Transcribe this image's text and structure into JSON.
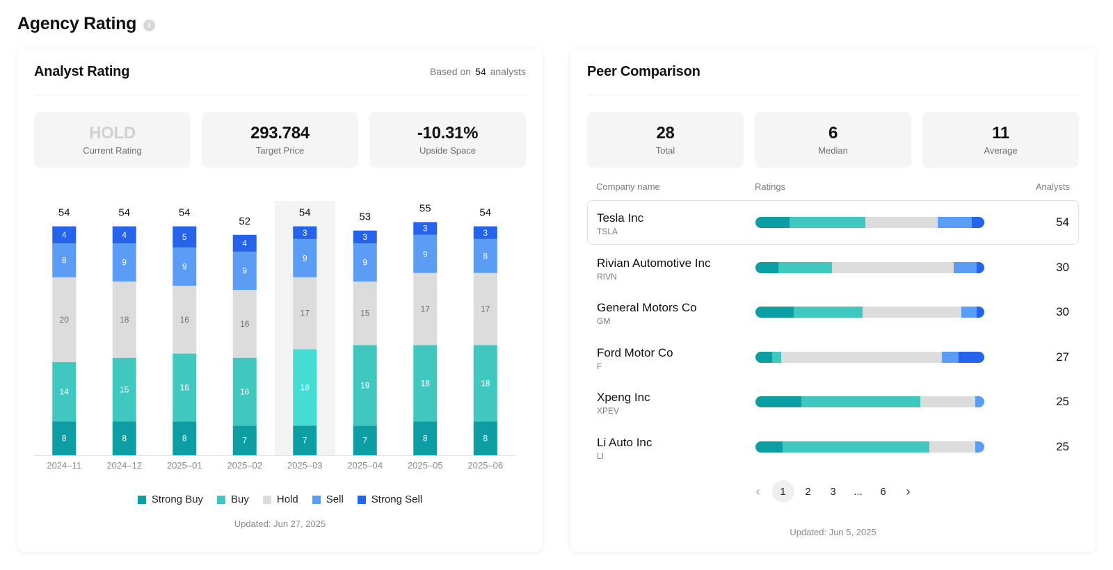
{
  "page": {
    "title": "Agency Rating",
    "info_glyph": "i"
  },
  "analyst": {
    "title": "Analyst Rating",
    "based_on_prefix": "Based on",
    "based_on_count": "54",
    "based_on_suffix": "analysts",
    "stats": [
      {
        "value": "HOLD",
        "label": "Current Rating"
      },
      {
        "value": "293.784",
        "label": "Target Price"
      },
      {
        "value": "-10.31%",
        "label": "Upside Space"
      }
    ],
    "updated": "Updated: Jun 27, 2025"
  },
  "colors": {
    "strong_buy": "#0d9ea3",
    "buy": "#40c8c0",
    "buy_highlight": "#45dcd3",
    "hold": "#dcdcdc",
    "sell": "#5b9cf5",
    "strong_sell": "#2563eb",
    "highlight_bg": "#f3f3f3"
  },
  "legend": [
    "Strong Buy",
    "Buy",
    "Hold",
    "Sell",
    "Strong Sell"
  ],
  "chart_data": {
    "type": "bar",
    "stacked": true,
    "categories": [
      "2024–11",
      "2024–12",
      "2025–01",
      "2025–02",
      "2025–03",
      "2025–04",
      "2025–05",
      "2025–06"
    ],
    "series": [
      {
        "name": "Strong Buy",
        "values": [
          8,
          8,
          8,
          7,
          7,
          7,
          8,
          8
        ]
      },
      {
        "name": "Buy",
        "values": [
          14,
          15,
          16,
          16,
          18,
          19,
          18,
          18
        ]
      },
      {
        "name": "Hold",
        "values": [
          20,
          18,
          16,
          16,
          17,
          15,
          17,
          17
        ]
      },
      {
        "name": "Sell",
        "values": [
          8,
          9,
          9,
          9,
          9,
          9,
          9,
          8
        ]
      },
      {
        "name": "Strong Sell",
        "values": [
          4,
          4,
          5,
          4,
          3,
          3,
          3,
          3
        ]
      }
    ],
    "totals": [
      54,
      54,
      54,
      52,
      54,
      53,
      55,
      54
    ],
    "highlighted_category": "2025–03",
    "ylim": [
      0,
      60
    ]
  },
  "peer": {
    "title": "Peer Comparison",
    "stats": [
      {
        "value": "28",
        "label": "Total"
      },
      {
        "value": "6",
        "label": "Median"
      },
      {
        "value": "11",
        "label": "Average"
      }
    ],
    "columns": {
      "company": "Company name",
      "ratings": "Ratings",
      "analysts": "Analysts"
    },
    "rows": [
      {
        "name": "Tesla Inc",
        "ticker": "TSLA",
        "analysts": "54",
        "breakdown": [
          8,
          18,
          17,
          8,
          3
        ]
      },
      {
        "name": "Rivian Automotive Inc",
        "ticker": "RIVN",
        "analysts": "30",
        "breakdown": [
          3,
          7,
          16,
          3,
          1
        ]
      },
      {
        "name": "General Motors Co",
        "ticker": "GM",
        "analysts": "30",
        "breakdown": [
          5,
          9,
          13,
          2,
          1
        ]
      },
      {
        "name": "Ford Motor Co",
        "ticker": "F",
        "analysts": "27",
        "breakdown": [
          2,
          1,
          19,
          2,
          3
        ]
      },
      {
        "name": "Xpeng Inc",
        "ticker": "XPEV",
        "analysts": "25",
        "breakdown": [
          5,
          13,
          6,
          1,
          0
        ]
      },
      {
        "name": "Li Auto Inc",
        "ticker": "LI",
        "analysts": "25",
        "breakdown": [
          3,
          16,
          5,
          1,
          0
        ]
      }
    ],
    "pagination": {
      "prev": "‹",
      "pages": [
        "1",
        "2",
        "3",
        "...",
        "6"
      ],
      "current": "1",
      "next": "›"
    },
    "updated": "Updated: Jun 5, 2025"
  }
}
